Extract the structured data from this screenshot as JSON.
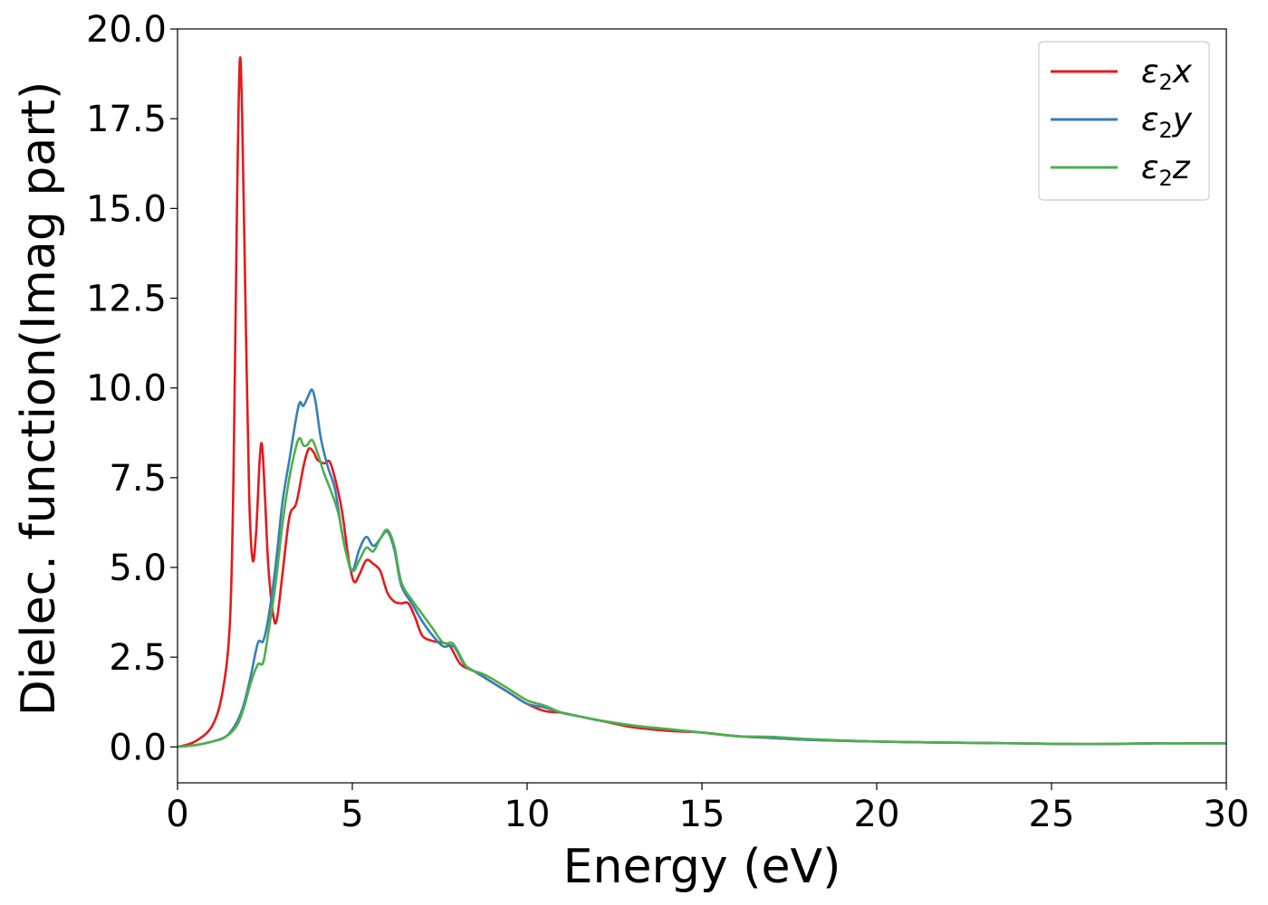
{
  "chart_data": {
    "type": "line",
    "xlabel": "Energy (eV)",
    "ylabel": "Dielec. function(Imag part)",
    "xlim": [
      0,
      30
    ],
    "ylim": [
      -1.0,
      20.0
    ],
    "xticks": [
      0,
      5,
      10,
      15,
      20,
      25,
      30
    ],
    "xtick_labels": [
      "0",
      "5",
      "10",
      "15",
      "20",
      "25",
      "30"
    ],
    "yticks": [
      0,
      2.5,
      5,
      7.5,
      10,
      12.5,
      15,
      17.5,
      20
    ],
    "ytick_labels": [
      "0.0",
      "2.5",
      "5.0",
      "7.5",
      "10.0",
      "12.5",
      "15.0",
      "17.5",
      "20.0"
    ],
    "grid": false,
    "legend_position": "top-right",
    "series": [
      {
        "name": "ε2x",
        "legend": {
          "symbol": "ε",
          "sub": "2",
          "axis": "x"
        },
        "color": "#e41a1c",
        "points": [
          [
            0,
            0
          ],
          [
            0.5,
            0.15
          ],
          [
            1.0,
            0.6
          ],
          [
            1.3,
            1.6
          ],
          [
            1.5,
            3.5
          ],
          [
            1.6,
            7.5
          ],
          [
            1.7,
            15.0
          ],
          [
            1.78,
            19.1
          ],
          [
            1.85,
            17.5
          ],
          [
            1.95,
            12.0
          ],
          [
            2.05,
            7.0
          ],
          [
            2.15,
            5.2
          ],
          [
            2.25,
            6.0
          ],
          [
            2.35,
            8.0
          ],
          [
            2.42,
            8.4
          ],
          [
            2.5,
            7.0
          ],
          [
            2.6,
            5.0
          ],
          [
            2.75,
            3.6
          ],
          [
            2.85,
            3.6
          ],
          [
            3.0,
            4.8
          ],
          [
            3.2,
            6.4
          ],
          [
            3.4,
            6.8
          ],
          [
            3.6,
            7.8
          ],
          [
            3.75,
            8.3
          ],
          [
            3.9,
            8.2
          ],
          [
            4.0,
            8.0
          ],
          [
            4.2,
            7.9
          ],
          [
            4.35,
            7.95
          ],
          [
            4.5,
            7.5
          ],
          [
            4.7,
            6.6
          ],
          [
            4.9,
            5.2
          ],
          [
            5.05,
            4.6
          ],
          [
            5.2,
            4.8
          ],
          [
            5.4,
            5.2
          ],
          [
            5.6,
            5.1
          ],
          [
            5.8,
            4.9
          ],
          [
            6.0,
            4.3
          ],
          [
            6.2,
            4.05
          ],
          [
            6.4,
            4.0
          ],
          [
            6.6,
            4.0
          ],
          [
            6.8,
            3.6
          ],
          [
            7.0,
            3.1
          ],
          [
            7.3,
            2.95
          ],
          [
            7.6,
            2.9
          ],
          [
            7.8,
            2.8
          ],
          [
            8.1,
            2.3
          ],
          [
            8.5,
            2.1
          ],
          [
            9.0,
            1.8
          ],
          [
            9.5,
            1.5
          ],
          [
            10.0,
            1.2
          ],
          [
            10.5,
            1.0
          ],
          [
            11.0,
            0.95
          ],
          [
            11.5,
            0.85
          ],
          [
            12.0,
            0.75
          ],
          [
            12.5,
            0.65
          ],
          [
            13.0,
            0.55
          ],
          [
            14.0,
            0.45
          ],
          [
            15.0,
            0.4
          ],
          [
            16.0,
            0.3
          ],
          [
            17.0,
            0.25
          ],
          [
            18.0,
            0.2
          ],
          [
            20.0,
            0.15
          ],
          [
            22.0,
            0.12
          ],
          [
            24.0,
            0.1
          ],
          [
            26.0,
            0.08
          ],
          [
            28.0,
            0.1
          ],
          [
            29.0,
            0.1
          ],
          [
            30.0,
            0.1
          ]
        ]
      },
      {
        "name": "ε2y",
        "legend": {
          "symbol": "ε",
          "sub": "2",
          "axis": "y"
        },
        "color": "#377eb8",
        "points": [
          [
            0,
            0
          ],
          [
            0.5,
            0.05
          ],
          [
            1.0,
            0.15
          ],
          [
            1.4,
            0.3
          ],
          [
            1.7,
            0.7
          ],
          [
            1.9,
            1.2
          ],
          [
            2.1,
            2.0
          ],
          [
            2.3,
            2.9
          ],
          [
            2.45,
            2.95
          ],
          [
            2.6,
            3.6
          ],
          [
            2.8,
            5.0
          ],
          [
            3.0,
            6.8
          ],
          [
            3.2,
            8.0
          ],
          [
            3.4,
            9.2
          ],
          [
            3.5,
            9.6
          ],
          [
            3.6,
            9.5
          ],
          [
            3.75,
            9.8
          ],
          [
            3.85,
            9.95
          ],
          [
            3.95,
            9.6
          ],
          [
            4.1,
            8.6
          ],
          [
            4.3,
            7.8
          ],
          [
            4.5,
            7.2
          ],
          [
            4.7,
            6.0
          ],
          [
            4.85,
            5.3
          ],
          [
            5.0,
            4.9
          ],
          [
            5.2,
            5.5
          ],
          [
            5.4,
            5.85
          ],
          [
            5.6,
            5.6
          ],
          [
            5.8,
            5.8
          ],
          [
            6.0,
            6.0
          ],
          [
            6.2,
            5.5
          ],
          [
            6.4,
            4.5
          ],
          [
            6.7,
            4.0
          ],
          [
            7.0,
            3.5
          ],
          [
            7.3,
            3.1
          ],
          [
            7.6,
            2.8
          ],
          [
            7.9,
            2.8
          ],
          [
            8.2,
            2.3
          ],
          [
            8.5,
            2.1
          ],
          [
            9.0,
            1.8
          ],
          [
            9.5,
            1.5
          ],
          [
            10.0,
            1.2
          ],
          [
            10.5,
            1.1
          ],
          [
            11.0,
            0.95
          ],
          [
            11.5,
            0.85
          ],
          [
            12.0,
            0.75
          ],
          [
            13.0,
            0.6
          ],
          [
            14.0,
            0.5
          ],
          [
            15.0,
            0.4
          ],
          [
            16.0,
            0.3
          ],
          [
            17.0,
            0.25
          ],
          [
            18.0,
            0.2
          ],
          [
            20.0,
            0.15
          ],
          [
            22.0,
            0.12
          ],
          [
            24.0,
            0.1
          ],
          [
            26.0,
            0.08
          ],
          [
            28.0,
            0.1
          ],
          [
            29.0,
            0.1
          ],
          [
            30.0,
            0.1
          ]
        ]
      },
      {
        "name": "ε2z",
        "legend": {
          "symbol": "ε",
          "sub": "2",
          "axis": "z"
        },
        "color": "#4daf4a",
        "points": [
          [
            0,
            0
          ],
          [
            0.5,
            0.05
          ],
          [
            1.0,
            0.15
          ],
          [
            1.4,
            0.3
          ],
          [
            1.7,
            0.6
          ],
          [
            1.9,
            1.1
          ],
          [
            2.1,
            1.8
          ],
          [
            2.3,
            2.3
          ],
          [
            2.45,
            2.35
          ],
          [
            2.6,
            3.2
          ],
          [
            2.8,
            4.5
          ],
          [
            3.0,
            6.2
          ],
          [
            3.2,
            7.5
          ],
          [
            3.4,
            8.4
          ],
          [
            3.5,
            8.6
          ],
          [
            3.6,
            8.4
          ],
          [
            3.7,
            8.4
          ],
          [
            3.85,
            8.55
          ],
          [
            4.0,
            8.2
          ],
          [
            4.2,
            7.6
          ],
          [
            4.4,
            7.1
          ],
          [
            4.6,
            6.5
          ],
          [
            4.8,
            5.5
          ],
          [
            5.0,
            4.9
          ],
          [
            5.2,
            5.2
          ],
          [
            5.4,
            5.55
          ],
          [
            5.6,
            5.45
          ],
          [
            5.8,
            5.8
          ],
          [
            6.0,
            6.05
          ],
          [
            6.2,
            5.6
          ],
          [
            6.4,
            4.6
          ],
          [
            6.7,
            4.1
          ],
          [
            7.0,
            3.7
          ],
          [
            7.3,
            3.3
          ],
          [
            7.6,
            2.9
          ],
          [
            7.85,
            2.9
          ],
          [
            8.0,
            2.7
          ],
          [
            8.3,
            2.2
          ],
          [
            8.7,
            2.05
          ],
          [
            9.0,
            1.9
          ],
          [
            9.5,
            1.6
          ],
          [
            10.0,
            1.3
          ],
          [
            10.5,
            1.15
          ],
          [
            11.0,
            0.95
          ],
          [
            11.5,
            0.85
          ],
          [
            12.0,
            0.75
          ],
          [
            13.0,
            0.6
          ],
          [
            14.0,
            0.5
          ],
          [
            15.0,
            0.4
          ],
          [
            16.0,
            0.3
          ],
          [
            17.0,
            0.28
          ],
          [
            18.0,
            0.22
          ],
          [
            20.0,
            0.15
          ],
          [
            22.0,
            0.12
          ],
          [
            24.0,
            0.1
          ],
          [
            26.0,
            0.08
          ],
          [
            28.0,
            0.1
          ],
          [
            29.0,
            0.1
          ],
          [
            30.0,
            0.1
          ]
        ]
      }
    ]
  }
}
